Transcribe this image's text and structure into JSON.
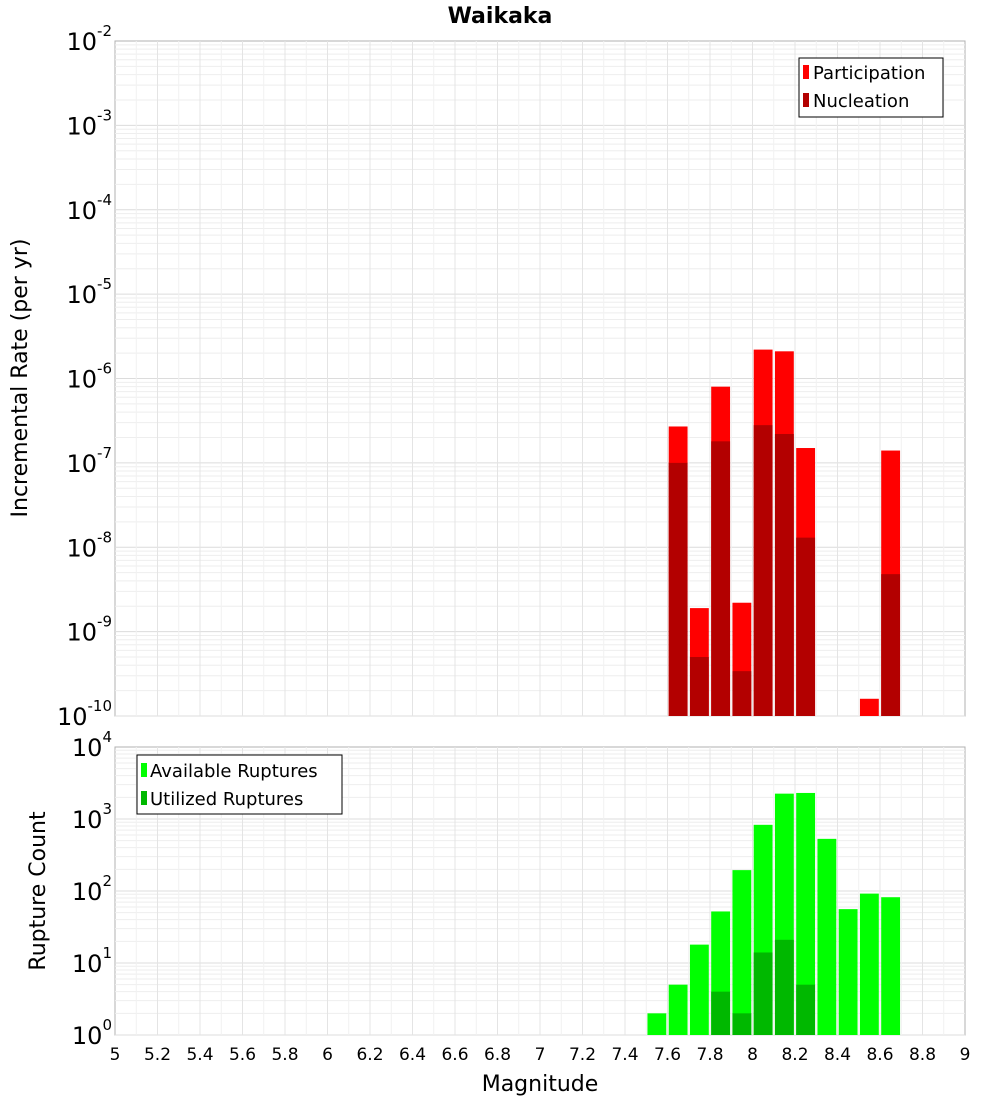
{
  "chart_data": [
    {
      "type": "bar",
      "title": "Waikaka",
      "xlabel": "",
      "ylabel": "Incremental Rate (per yr)",
      "yscale": "log",
      "ylim_exponents": [
        -10,
        -2
      ],
      "xlim": [
        5,
        9
      ],
      "bin_width": 0.1,
      "legend_position": "top-right",
      "series": [
        {
          "name": "Participation",
          "color": "#ff0000",
          "points": [
            {
              "x": 7.65,
              "y": 2.7e-07
            },
            {
              "x": 7.75,
              "y": 1.9e-09
            },
            {
              "x": 7.85,
              "y": 8e-07
            },
            {
              "x": 7.95,
              "y": 2.2e-09
            },
            {
              "x": 8.05,
              "y": 2.2e-06
            },
            {
              "x": 8.15,
              "y": 2.1e-06
            },
            {
              "x": 8.25,
              "y": 1.5e-07
            },
            {
              "x": 8.55,
              "y": 1.6e-10
            },
            {
              "x": 8.65,
              "y": 1.4e-07
            }
          ]
        },
        {
          "name": "Nucleation",
          "color": "#b30000",
          "points": [
            {
              "x": 7.65,
              "y": 1e-07
            },
            {
              "x": 7.75,
              "y": 5e-10
            },
            {
              "x": 7.85,
              "y": 1.8e-07
            },
            {
              "x": 7.95,
              "y": 3.4e-10
            },
            {
              "x": 8.05,
              "y": 2.8e-07
            },
            {
              "x": 8.15,
              "y": 2.2e-07
            },
            {
              "x": 8.25,
              "y": 1.3e-08
            },
            {
              "x": 8.65,
              "y": 4.8e-09
            }
          ]
        }
      ]
    },
    {
      "type": "bar",
      "title": "",
      "xlabel": "Magnitude",
      "ylabel": "Rupture Count",
      "yscale": "log",
      "ylim_exponents": [
        0,
        4
      ],
      "xlim": [
        5,
        9
      ],
      "bin_width": 0.1,
      "legend_position": "top-left",
      "series": [
        {
          "name": "Available Ruptures",
          "color": "#00ff00",
          "points": [
            {
              "x": 7.15,
              "y": 1
            },
            {
              "x": 7.55,
              "y": 2
            },
            {
              "x": 7.65,
              "y": 5
            },
            {
              "x": 7.75,
              "y": 18
            },
            {
              "x": 7.85,
              "y": 52
            },
            {
              "x": 7.95,
              "y": 195
            },
            {
              "x": 8.05,
              "y": 830
            },
            {
              "x": 8.15,
              "y": 2250
            },
            {
              "x": 8.25,
              "y": 2300
            },
            {
              "x": 8.35,
              "y": 530
            },
            {
              "x": 8.45,
              "y": 56
            },
            {
              "x": 8.55,
              "y": 92
            },
            {
              "x": 8.65,
              "y": 82
            }
          ]
        },
        {
          "name": "Utilized Ruptures",
          "color": "#00b800",
          "points": [
            {
              "x": 7.65,
              "y": 1
            },
            {
              "x": 7.75,
              "y": 1
            },
            {
              "x": 7.85,
              "y": 4
            },
            {
              "x": 7.95,
              "y": 2
            },
            {
              "x": 8.05,
              "y": 14
            },
            {
              "x": 8.15,
              "y": 21
            },
            {
              "x": 8.25,
              "y": 5
            },
            {
              "x": 8.55,
              "y": 1
            },
            {
              "x": 8.65,
              "y": 1
            }
          ]
        }
      ]
    }
  ],
  "x_ticks": [
    "5",
    "5.2",
    "5.4",
    "5.6",
    "5.8",
    "6",
    "6.2",
    "6.4",
    "6.6",
    "6.8",
    "7",
    "7.2",
    "7.4",
    "7.6",
    "7.8",
    "8",
    "8.2",
    "8.4",
    "8.6",
    "8.8",
    "9"
  ],
  "top_y_ticks": [
    {
      "base": "10",
      "exp": "-2"
    },
    {
      "base": "10",
      "exp": "-3"
    },
    {
      "base": "10",
      "exp": "-4"
    },
    {
      "base": "10",
      "exp": "-5"
    },
    {
      "base": "10",
      "exp": "-6"
    },
    {
      "base": "10",
      "exp": "-7"
    },
    {
      "base": "10",
      "exp": "-8"
    },
    {
      "base": "10",
      "exp": "-9"
    },
    {
      "base": "10",
      "exp": "-10"
    }
  ],
  "bottom_y_ticks": [
    {
      "base": "10",
      "exp": "4"
    },
    {
      "base": "10",
      "exp": "3"
    },
    {
      "base": "10",
      "exp": "2"
    },
    {
      "base": "10",
      "exp": "1"
    },
    {
      "base": "10",
      "exp": "0"
    }
  ]
}
